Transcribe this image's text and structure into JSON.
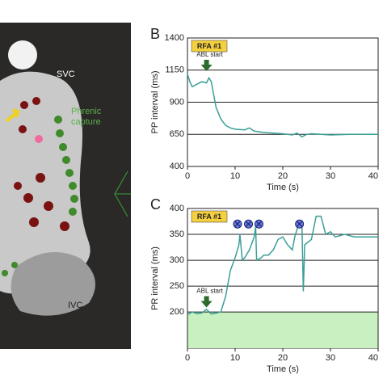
{
  "panel_a": {
    "labels": [
      "SVC",
      "Phrenic",
      "capture",
      "IVC"
    ]
  },
  "chart_data": [
    {
      "type": "line",
      "panel": "B",
      "annotation": "RFA #1",
      "event": {
        "label": "ABL start",
        "x": 4
      },
      "x_label": "Time (s)",
      "y_label": "PP interval (ms)",
      "xlim": [
        0,
        40
      ],
      "xticks": [
        0,
        10,
        20,
        30,
        40
      ],
      "ylim": [
        400,
        1400
      ],
      "yticks": [
        400,
        650,
        900,
        1150,
        1400
      ],
      "grid": true,
      "series": [
        {
          "color": "#3a9f97",
          "x": [
            0,
            0.5,
            1,
            2,
            3,
            4,
            4.5,
            5,
            5.5,
            6,
            7,
            8,
            9,
            10,
            12,
            13,
            14,
            16,
            18,
            20,
            22,
            23,
            24,
            25,
            26,
            28,
            30,
            34,
            38,
            40
          ],
          "values": [
            1120,
            1060,
            1020,
            1040,
            1060,
            1050,
            1090,
            1060,
            960,
            860,
            770,
            720,
            700,
            690,
            685,
            700,
            675,
            665,
            660,
            655,
            645,
            660,
            630,
            650,
            655,
            650,
            645,
            650,
            650,
            650
          ]
        }
      ]
    },
    {
      "type": "line",
      "panel": "C",
      "annotation": "RFA #1",
      "event": {
        "label": "ABL start",
        "x": 4
      },
      "x_label": "Time (s)",
      "y_label": "PR interval (ms)",
      "xlim": [
        0,
        40
      ],
      "xticks": [
        0,
        10,
        20,
        30,
        40
      ],
      "ylim": [
        130,
        400
      ],
      "yticks": [
        200,
        250,
        300,
        350,
        400
      ],
      "grid": true,
      "band": [
        130,
        200
      ],
      "band_color": "#c9f0c0",
      "markers": {
        "x": [
          10.5,
          12.8,
          15,
          23.5
        ],
        "y": [
          370,
          370,
          370,
          370
        ]
      },
      "series": [
        {
          "color": "#3a9f97",
          "x": [
            0,
            1,
            2,
            3,
            4,
            5,
            6,
            7,
            8,
            9,
            10,
            10.8,
            11,
            11.5,
            12,
            13,
            14,
            14.3,
            14.5,
            15.5,
            16,
            17,
            18,
            19,
            20,
            21,
            22,
            22.5,
            23,
            23.5,
            24,
            24.3,
            24.6,
            26,
            27,
            28,
            29,
            30,
            31,
            33,
            35,
            37,
            40
          ],
          "values": [
            195,
            200,
            197,
            198,
            205,
            196,
            198,
            200,
            230,
            280,
            305,
            330,
            350,
            300,
            305,
            320,
            345,
            365,
            300,
            305,
            310,
            310,
            320,
            340,
            345,
            330,
            320,
            345,
            360,
            370,
            375,
            240,
            330,
            340,
            385,
            385,
            350,
            355,
            345,
            350,
            345,
            345,
            345
          ]
        }
      ]
    }
  ]
}
